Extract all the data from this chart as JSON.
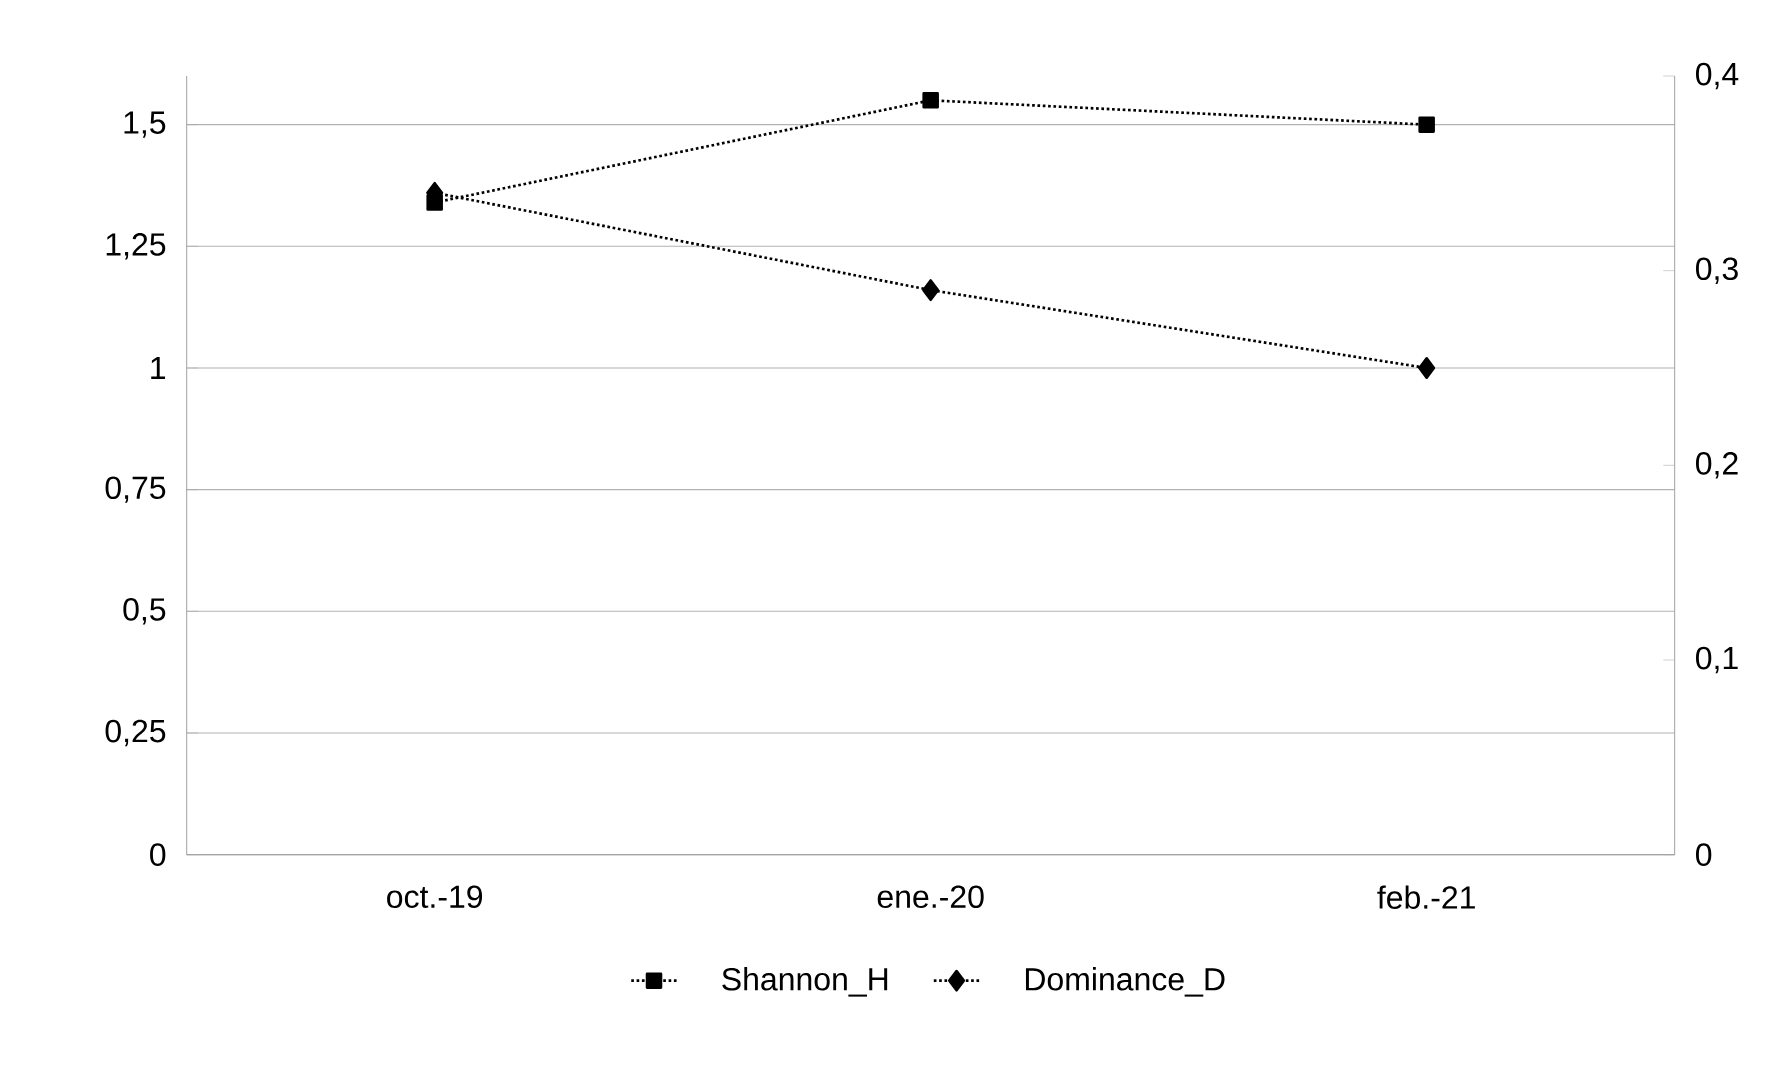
{
  "chart_data": {
    "type": "line",
    "categories": [
      "oct.-19",
      "ene.-20",
      "feb.-21"
    ],
    "series": [
      {
        "name": "Shannon_H",
        "color": "#000000",
        "marker": "square",
        "values": [
          1.34,
          1.55,
          1.5
        ]
      },
      {
        "name": "Dominance_D",
        "color": "#000000",
        "marker": "diamond",
        "axis": "y2",
        "values": [
          0.34,
          0.29,
          0.25
        ]
      }
    ],
    "ylim": [
      0,
      1.6
    ],
    "yticks": [
      0,
      {
        "value": 0.25,
        "label": "0,25"
      },
      {
        "value": 0.5,
        "label": "0,5"
      },
      {
        "value": 0.75,
        "label": "0,75"
      },
      1,
      {
        "value": 1.25,
        "label": "1,25"
      },
      {
        "value": 1.5,
        "label": "1,5"
      }
    ],
    "y2lim": [
      0,
      0.4
    ],
    "y2ticks": [
      0,
      {
        "value": 0.1,
        "label": "0,1"
      },
      {
        "value": 0.2,
        "label": "0,2"
      },
      {
        "value": 0.3,
        "label": "0,3"
      },
      {
        "value": 0.4,
        "label": "0,4"
      }
    ],
    "grid": "y",
    "legend": "bottom",
    "line_style": "dotted"
  }
}
